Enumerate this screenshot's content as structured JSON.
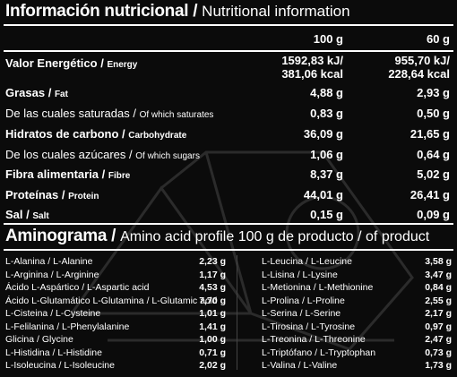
{
  "header": {
    "title_es": "Información nutricional",
    "title_sep": " / ",
    "title_en": "Nutritional information",
    "col_100g": "100 g",
    "col_60g": "60 g"
  },
  "nutrients": [
    {
      "es": "Valor Energético",
      "en": "Energy",
      "v100": [
        "1592,83 kJ/",
        "381,06 kcal"
      ],
      "v60": [
        "955,70 kJ/",
        "228,64 kcal"
      ]
    },
    {
      "es": "Grasas",
      "en": "Fat",
      "v100": [
        "4,88 g"
      ],
      "v60": [
        "2,93 g"
      ]
    },
    {
      "es": "De las cuales saturadas",
      "en": "Of which saturates",
      "v100": [
        "0,83 g"
      ],
      "v60": [
        "0,50 g"
      ]
    },
    {
      "es": "Hidratos de carbono",
      "en": "Carbohydrate",
      "v100": [
        "36,09 g"
      ],
      "v60": [
        "21,65 g"
      ]
    },
    {
      "es": "De los cuales azúcares",
      "en": "Of which sugars",
      "v100": [
        "1,06 g"
      ],
      "v60": [
        "0,64 g"
      ]
    },
    {
      "es": "Fibra alimentaria",
      "en": "Fibre",
      "v100": [
        "8,37 g"
      ],
      "v60": [
        "5,02 g"
      ]
    },
    {
      "es": "Proteínas",
      "en": "Protein",
      "v100": [
        "44,01 g"
      ],
      "v60": [
        "26,41 g"
      ]
    },
    {
      "es": "Sal",
      "en": "Salt",
      "v100": [
        "0,15 g"
      ],
      "v60": [
        "0,09 g"
      ]
    }
  ],
  "amino": {
    "title_es": "Aminograma",
    "title_sep": " / ",
    "title_en": "Amino acid profile 100 g de producto / of product",
    "left": [
      {
        "name": "L-Alanina / L-Alanine",
        "value": "2,23 g"
      },
      {
        "name": "L-Arginina / L-Arginine",
        "value": "1,17 g"
      },
      {
        "name": "Ácido L-Aspártico / L-Aspartic acid",
        "value": "4,53 g"
      },
      {
        "name": "Ácido L-Glutamático L-Glutamina / L-Glutamic acid",
        "value": "7,70 g"
      },
      {
        "name": "L-Cisteina / L-Cysteine",
        "value": "1,01 g"
      },
      {
        "name": "L-Felilanina / L-Phenylalanine",
        "value": "1,41 g"
      },
      {
        "name": "Glicina / Glycine",
        "value": "1,00 g"
      },
      {
        "name": "L-Histidina / L-Histidine",
        "value": "0,71 g"
      },
      {
        "name": "L-Isoleucina / L-Isoleucine",
        "value": "2,02 g"
      }
    ],
    "right": [
      {
        "name": "L-Leucina / L-Leucine",
        "value": "3,58 g"
      },
      {
        "name": "L-Lisina / L-Lysine",
        "value": "3,47 g"
      },
      {
        "name": "L-Metionina / L-Methionine",
        "value": "0,84 g"
      },
      {
        "name": "L-Prolina / L-Proline",
        "value": "2,55 g"
      },
      {
        "name": "L-Serina / L-Serine",
        "value": "2,17 g"
      },
      {
        "name": "L-Tirosina / L-Tyrosine",
        "value": "0,97 g"
      },
      {
        "name": "L-Treonina / L-Threonine",
        "value": "2,47 g"
      },
      {
        "name": "L-Triptófano / L-Tryptophan",
        "value": "0,73 g"
      },
      {
        "name": "L-Valina / L-Valine",
        "value": "1,73 g"
      }
    ]
  },
  "colors": {
    "background": "#0b0b0b",
    "text": "#ffffff",
    "rule": "#ffffff"
  }
}
